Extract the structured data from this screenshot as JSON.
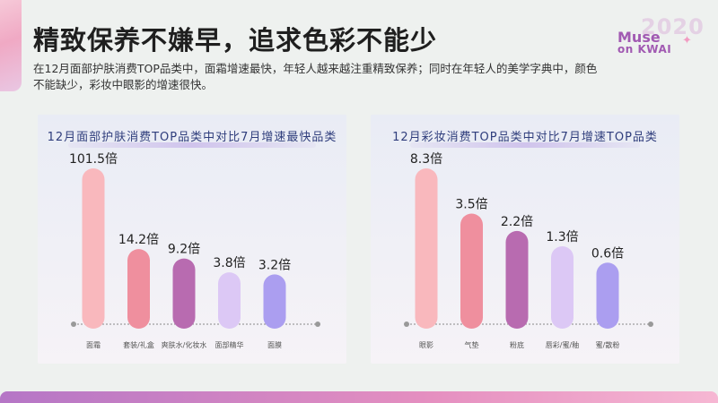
{
  "header": {
    "title": "精致保养不嫌早，追求色彩不能少",
    "subtitle": "在12月面部护肤消费TOP品类中，面霜增速最快，年轻人越来越注重精致保养；同时在年轻人的美学字典中，颜色不能缺少，彩妆中眼影的增速很快。"
  },
  "logo": {
    "year": "2020",
    "line1": "Muse",
    "line2": "on KWAI"
  },
  "chart_data": [
    {
      "type": "bar",
      "title": "12月面部护肤消费TOP品类中对比7月增速最快品类",
      "categories": [
        "面霜",
        "套装/礼盒",
        "爽肤水/化妆水",
        "面部精华",
        "面膜"
      ],
      "values": [
        101.5,
        14.2,
        9.2,
        3.8,
        3.2
      ],
      "labels": [
        "101.5倍",
        "14.2倍",
        "9.2倍",
        "3.8倍",
        "3.2倍"
      ],
      "colors": [
        "#f9b8bd",
        "#ef8f9e",
        "#b86bb0",
        "#dcc8f5",
        "#ab9ef0"
      ],
      "xlabel": "",
      "ylabel": ""
    },
    {
      "type": "bar",
      "title": "12月彩妆消费TOP品类中对比7月增速TOP品类",
      "categories": [
        "眼影",
        "气垫",
        "粉底",
        "唇彩/蜜/釉",
        "蜜/散粉"
      ],
      "values": [
        8.3,
        3.5,
        2.2,
        1.3,
        0.6
      ],
      "labels": [
        "8.3倍",
        "3.5倍",
        "2.2倍",
        "1.3倍",
        "0.6倍"
      ],
      "colors": [
        "#f9b8bd",
        "#ef8f9e",
        "#b86bb0",
        "#dcc8f5",
        "#ab9ef0"
      ],
      "xlabel": "",
      "ylabel": ""
    }
  ]
}
